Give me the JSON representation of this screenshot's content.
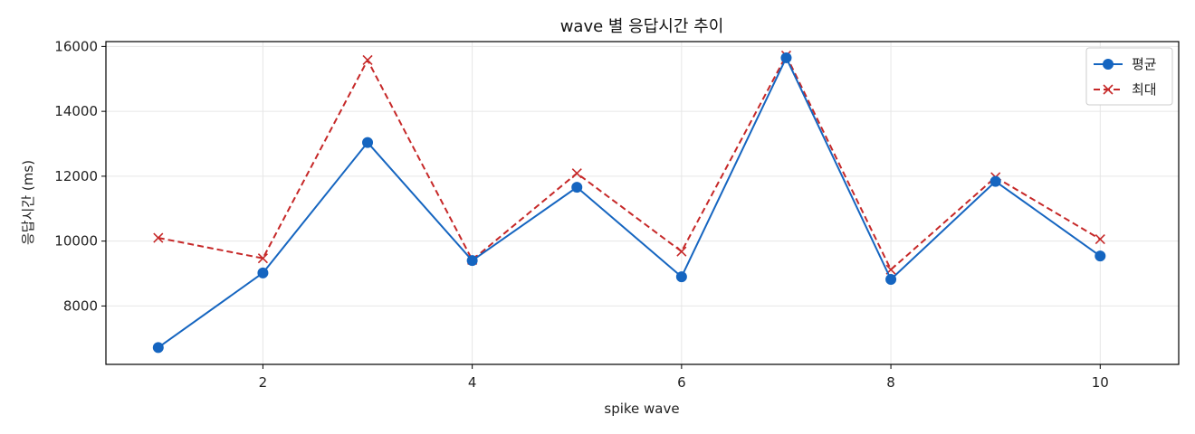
{
  "chart_data": {
    "type": "line",
    "title": "wave 별 응답시간 추이",
    "xlabel": "spike wave",
    "ylabel": "응답시간 (ms)",
    "x": [
      1,
      2,
      3,
      4,
      5,
      6,
      7,
      8,
      9,
      10
    ],
    "xticks": [
      2,
      4,
      6,
      8,
      10
    ],
    "yticks": [
      8000,
      10000,
      12000,
      14000,
      16000
    ],
    "xlim": [
      0.5,
      10.75
    ],
    "ylim": [
      6200,
      16150
    ],
    "grid": true,
    "legend_position": "top-right",
    "series": [
      {
        "name": "평균",
        "values": [
          6720,
          9020,
          13040,
          9400,
          11660,
          8900,
          15650,
          8820,
          11840,
          9540
        ],
        "color": "#1565c0",
        "line_style": "solid",
        "marker": "circle"
      },
      {
        "name": "최대",
        "values": [
          10100,
          9470,
          15580,
          9420,
          12090,
          9680,
          15720,
          9120,
          11970,
          10060
        ],
        "color": "#c62828",
        "line_style": "dashed",
        "marker": "x"
      }
    ]
  }
}
